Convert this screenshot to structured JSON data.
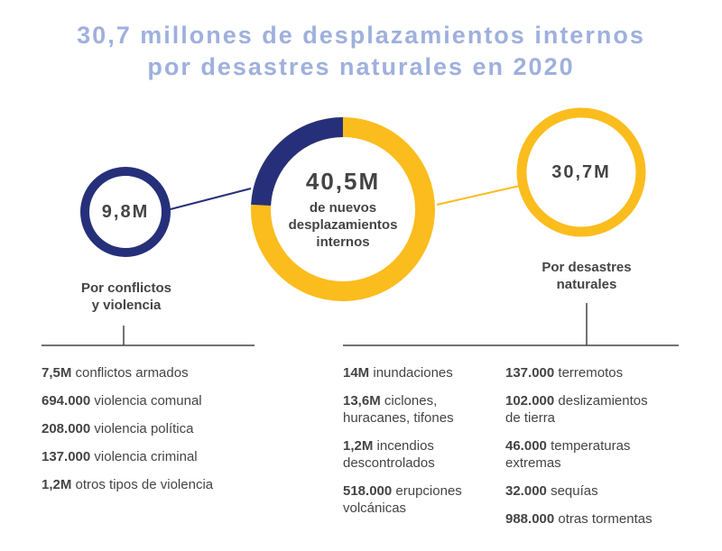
{
  "title": {
    "line1": "30,7 millones de desplazamientos internos",
    "line2": "por desastres naturales en 2020"
  },
  "colors": {
    "navy": "#26307a",
    "yellow": "#fbbc1d",
    "title": "#9fb0dd",
    "text": "#444444"
  },
  "center": {
    "value": "40,5M",
    "caption_line1": "de nuevos",
    "caption_line2": "desplazamientos",
    "caption_line3": "internos",
    "conflict_fraction": 0.242
  },
  "conflict": {
    "value": "9,8M",
    "label_line1": "Por conflictos",
    "label_line2": "y violencia",
    "items": [
      {
        "num": "7,5M",
        "text": "conflictos armados"
      },
      {
        "num": "694.000",
        "text": "violencia comunal"
      },
      {
        "num": "208.000",
        "text": "violencia política"
      },
      {
        "num": "137.000",
        "text": "violencia criminal"
      },
      {
        "num": "1,2M",
        "text": "otros tipos de violencia"
      }
    ]
  },
  "disasters": {
    "value": "30,7M",
    "label_line1": "Por desastres",
    "label_line2": "naturales",
    "col1": [
      {
        "num": "14M",
        "text": "inundaciones",
        "text2": ""
      },
      {
        "num": "13,6M",
        "text": "ciclones,",
        "text2": "huracanes, tifones"
      },
      {
        "num": "1,2M",
        "text": "incendios",
        "text2": "descontrolados"
      },
      {
        "num": "518.000",
        "text": "erupciones",
        "text2": "volcánicas"
      }
    ],
    "col2": [
      {
        "num": "137.000",
        "text": "terremotos",
        "text2": ""
      },
      {
        "num": "102.000",
        "text": "deslizamientos",
        "text2": "de tierra"
      },
      {
        "num": "46.000",
        "text": "temperaturas",
        "text2": "extremas"
      },
      {
        "num": "32.000",
        "text": "sequías",
        "text2": ""
      },
      {
        "num": "988.000",
        "text": "otras tormentas",
        "text2": ""
      }
    ]
  }
}
